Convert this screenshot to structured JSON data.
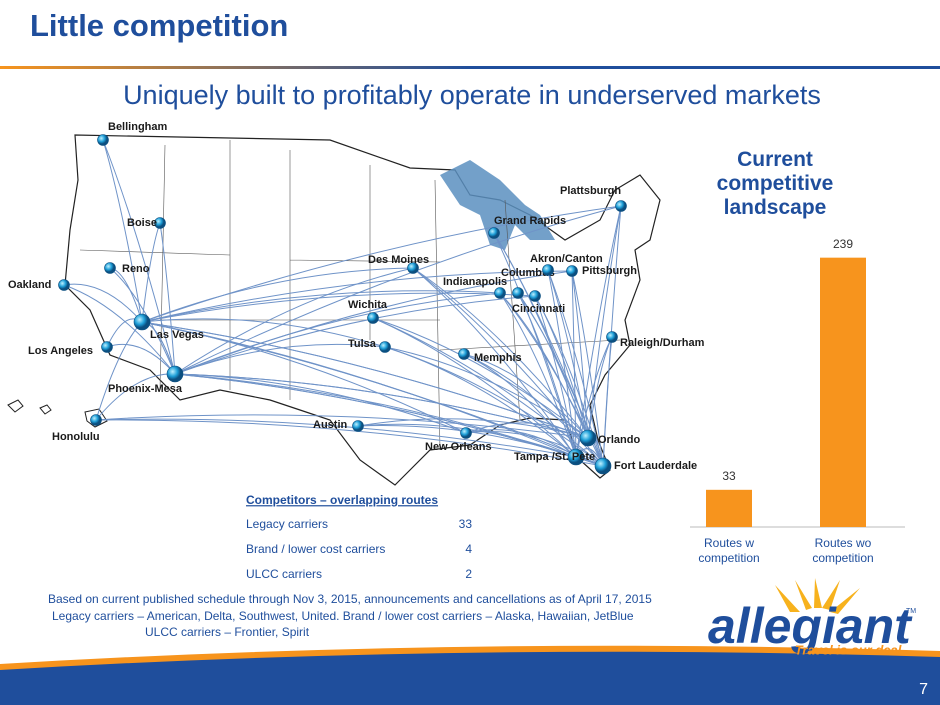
{
  "header": {
    "title": "Little competition",
    "subtitle": "Uniquely built to profitably operate in underserved markets"
  },
  "map": {
    "cities": [
      "Bellingham",
      "Boise",
      "Reno",
      "Oakland",
      "Los Angeles",
      "Las Vegas",
      "Phoenix-Mesa",
      "Honolulu",
      "Des Moines",
      "Wichita",
      "Tulsa",
      "Austin",
      "New Orleans",
      "Memphis",
      "Indianapolis",
      "Columbus",
      "Cincinnati",
      "Akron/Canton",
      "Pittsburgh",
      "Grand Rapids",
      "Plattsburgh",
      "Raleigh/Durham",
      "Orlando",
      "Tampa /St. Pete",
      "Fort Lauderdale"
    ]
  },
  "chart_data": {
    "type": "bar",
    "title": "Current competitive landscape",
    "categories": [
      "Routes w competition",
      "Routes wo competition"
    ],
    "values": [
      33,
      239
    ],
    "color": "#f7941d",
    "ylim": [
      0,
      260
    ]
  },
  "table": {
    "title": "Competitors – overlapping routes",
    "rows": [
      [
        "Legacy carriers",
        33
      ],
      [
        "Brand / lower cost carriers",
        4
      ],
      [
        "ULCC carriers",
        2
      ]
    ]
  },
  "footnotes": [
    "Based on current published schedule through Nov 3, 2015, announcements and cancellations as of  April 17, 2015",
    "Legacy carriers – American, Delta, Southwest, United.  Brand / lower cost carriers – Alaska, Hawaiian, JetBlue",
    "ULCC carriers – Frontier, Spirit"
  ],
  "logo": {
    "name": "allegiant",
    "tagline": "Travel is our deal.",
    "mark": "TM"
  },
  "page_number": "7"
}
